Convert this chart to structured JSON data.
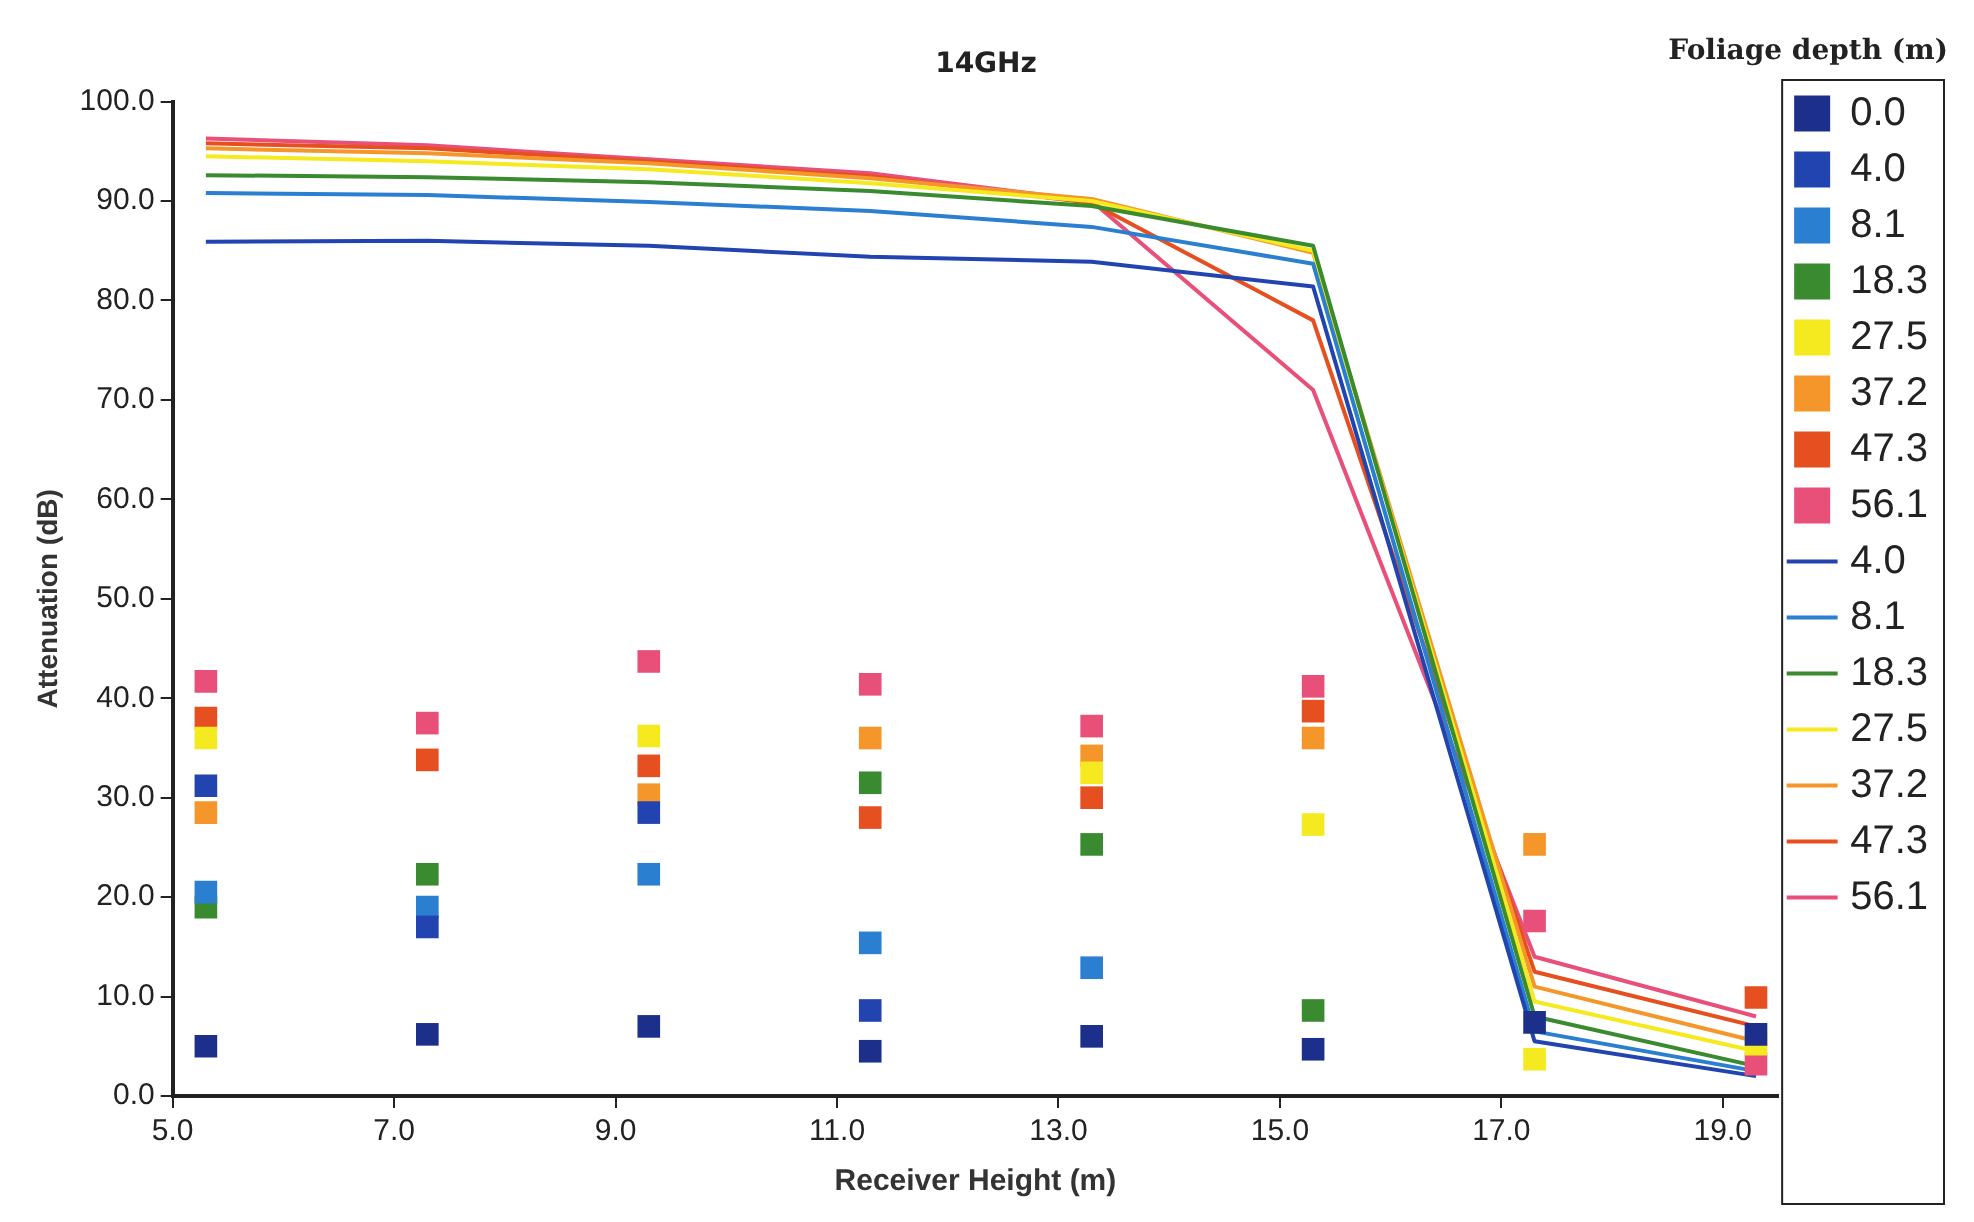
{
  "chart_data": {
    "type": "line",
    "title": "14GHz",
    "xlabel": "Receiver Height (m)",
    "ylabel": "Attenuation (dB)",
    "legend_title": "Foliage depth (m)",
    "legend": "right",
    "marker": "square",
    "grid": false,
    "x": [
      5.3,
      7.3,
      9.3,
      11.3,
      13.3,
      15.3,
      17.3,
      19.3
    ],
    "xlim": [
      5,
      19.5
    ],
    "xticks": [
      {
        "value": 5,
        "label": "5.0"
      },
      {
        "value": 7,
        "label": "7.0"
      },
      {
        "value": 9,
        "label": "9.0"
      },
      {
        "value": 11,
        "label": "11.0"
      },
      {
        "value": 13,
        "label": "13.0"
      },
      {
        "value": 15,
        "label": "15.0"
      },
      {
        "value": 17,
        "label": "17.0"
      },
      {
        "value": 19,
        "label": "19.0"
      }
    ],
    "ylim": [
      0,
      100
    ],
    "yticks": [
      {
        "value": 0,
        "label": "0.0"
      },
      {
        "value": 10,
        "label": "10.0"
      },
      {
        "value": 20,
        "label": "20.0"
      },
      {
        "value": 30,
        "label": "30.0"
      },
      {
        "value": 40,
        "label": "40.0"
      },
      {
        "value": 50,
        "label": "50.0"
      },
      {
        "value": 60,
        "label": "60.0"
      },
      {
        "value": 70,
        "label": "70.0"
      },
      {
        "value": 80,
        "label": "80.0"
      },
      {
        "value": 90,
        "label": "90.0"
      },
      {
        "value": 100,
        "label": "100.0"
      }
    ],
    "series": [
      {
        "name": "0.0",
        "type": "scatter",
        "color": "#1c2f8a",
        "values": [
          5.0,
          6.2,
          7.0,
          4.5,
          6.0,
          4.7,
          7.4,
          6.2
        ]
      },
      {
        "name": "4.0",
        "type": "scatter",
        "color": "#2244b0",
        "values": [
          31.2,
          17,
          28.5,
          8.6,
          null,
          null,
          null,
          null
        ]
      },
      {
        "name": "8.1",
        "type": "scatter",
        "color": "#2a7fd0",
        "values": [
          20.5,
          19,
          22.3,
          15.4,
          12.9,
          null,
          null,
          null
        ]
      },
      {
        "name": "18.3",
        "type": "scatter",
        "color": "#3a8a30",
        "values": [
          19,
          22.3,
          null,
          31.5,
          25.3,
          8.6,
          null,
          null
        ]
      },
      {
        "name": "27.5",
        "type": "scatter",
        "color": "#f5ea20",
        "values": [
          36,
          null,
          36.2,
          null,
          32.5,
          27.3,
          3.7,
          5.2
        ]
      },
      {
        "name": "37.2",
        "type": "scatter",
        "color": "#f5962a",
        "values": [
          28.5,
          null,
          30.3,
          36,
          34.2,
          36,
          25.3,
          null
        ]
      },
      {
        "name": "47.3",
        "type": "scatter",
        "color": "#e65020",
        "values": [
          38,
          33.8,
          33.2,
          28,
          30,
          38.7,
          null,
          9.9
        ]
      },
      {
        "name": "56.1",
        "type": "scatter",
        "color": "#e8507a",
        "values": [
          41.7,
          37.5,
          43.7,
          41.4,
          37.2,
          41.2,
          17.6,
          3.2
        ]
      },
      {
        "name": "4.0",
        "marker": "none",
        "color": "#2244b0",
        "values": [
          85.9,
          86,
          85.5,
          84.4,
          83.9,
          81.4,
          5.5,
          2
        ]
      },
      {
        "name": "8.1",
        "marker": "none",
        "color": "#2a7fd0",
        "values": [
          90.8,
          90.6,
          89.9,
          89,
          87.4,
          83.7,
          6.5,
          2.5
        ]
      },
      {
        "name": "18.3",
        "marker": "none",
        "color": "#3a8a30",
        "values": [
          92.6,
          92.4,
          91.9,
          91,
          89.5,
          85.5,
          8,
          3
        ]
      },
      {
        "name": "27.5",
        "marker": "none",
        "color": "#f5ea20",
        "values": [
          94.5,
          94,
          93.2,
          91.8,
          90,
          85,
          9.5,
          4.5
        ]
      },
      {
        "name": "37.2",
        "marker": "none",
        "color": "#f5962a",
        "values": [
          95.3,
          94.8,
          93.8,
          92.3,
          90.2,
          84.8,
          11,
          5.5
        ]
      },
      {
        "name": "47.3",
        "marker": "none",
        "color": "#e65020",
        "values": [
          95.8,
          95.3,
          94,
          92.5,
          89.8,
          78,
          12.5,
          7
        ]
      },
      {
        "name": "56.1",
        "marker": "none",
        "color": "#e8507a",
        "values": [
          96.3,
          95.6,
          94.2,
          92.8,
          90,
          71,
          14,
          8
        ]
      }
    ]
  }
}
